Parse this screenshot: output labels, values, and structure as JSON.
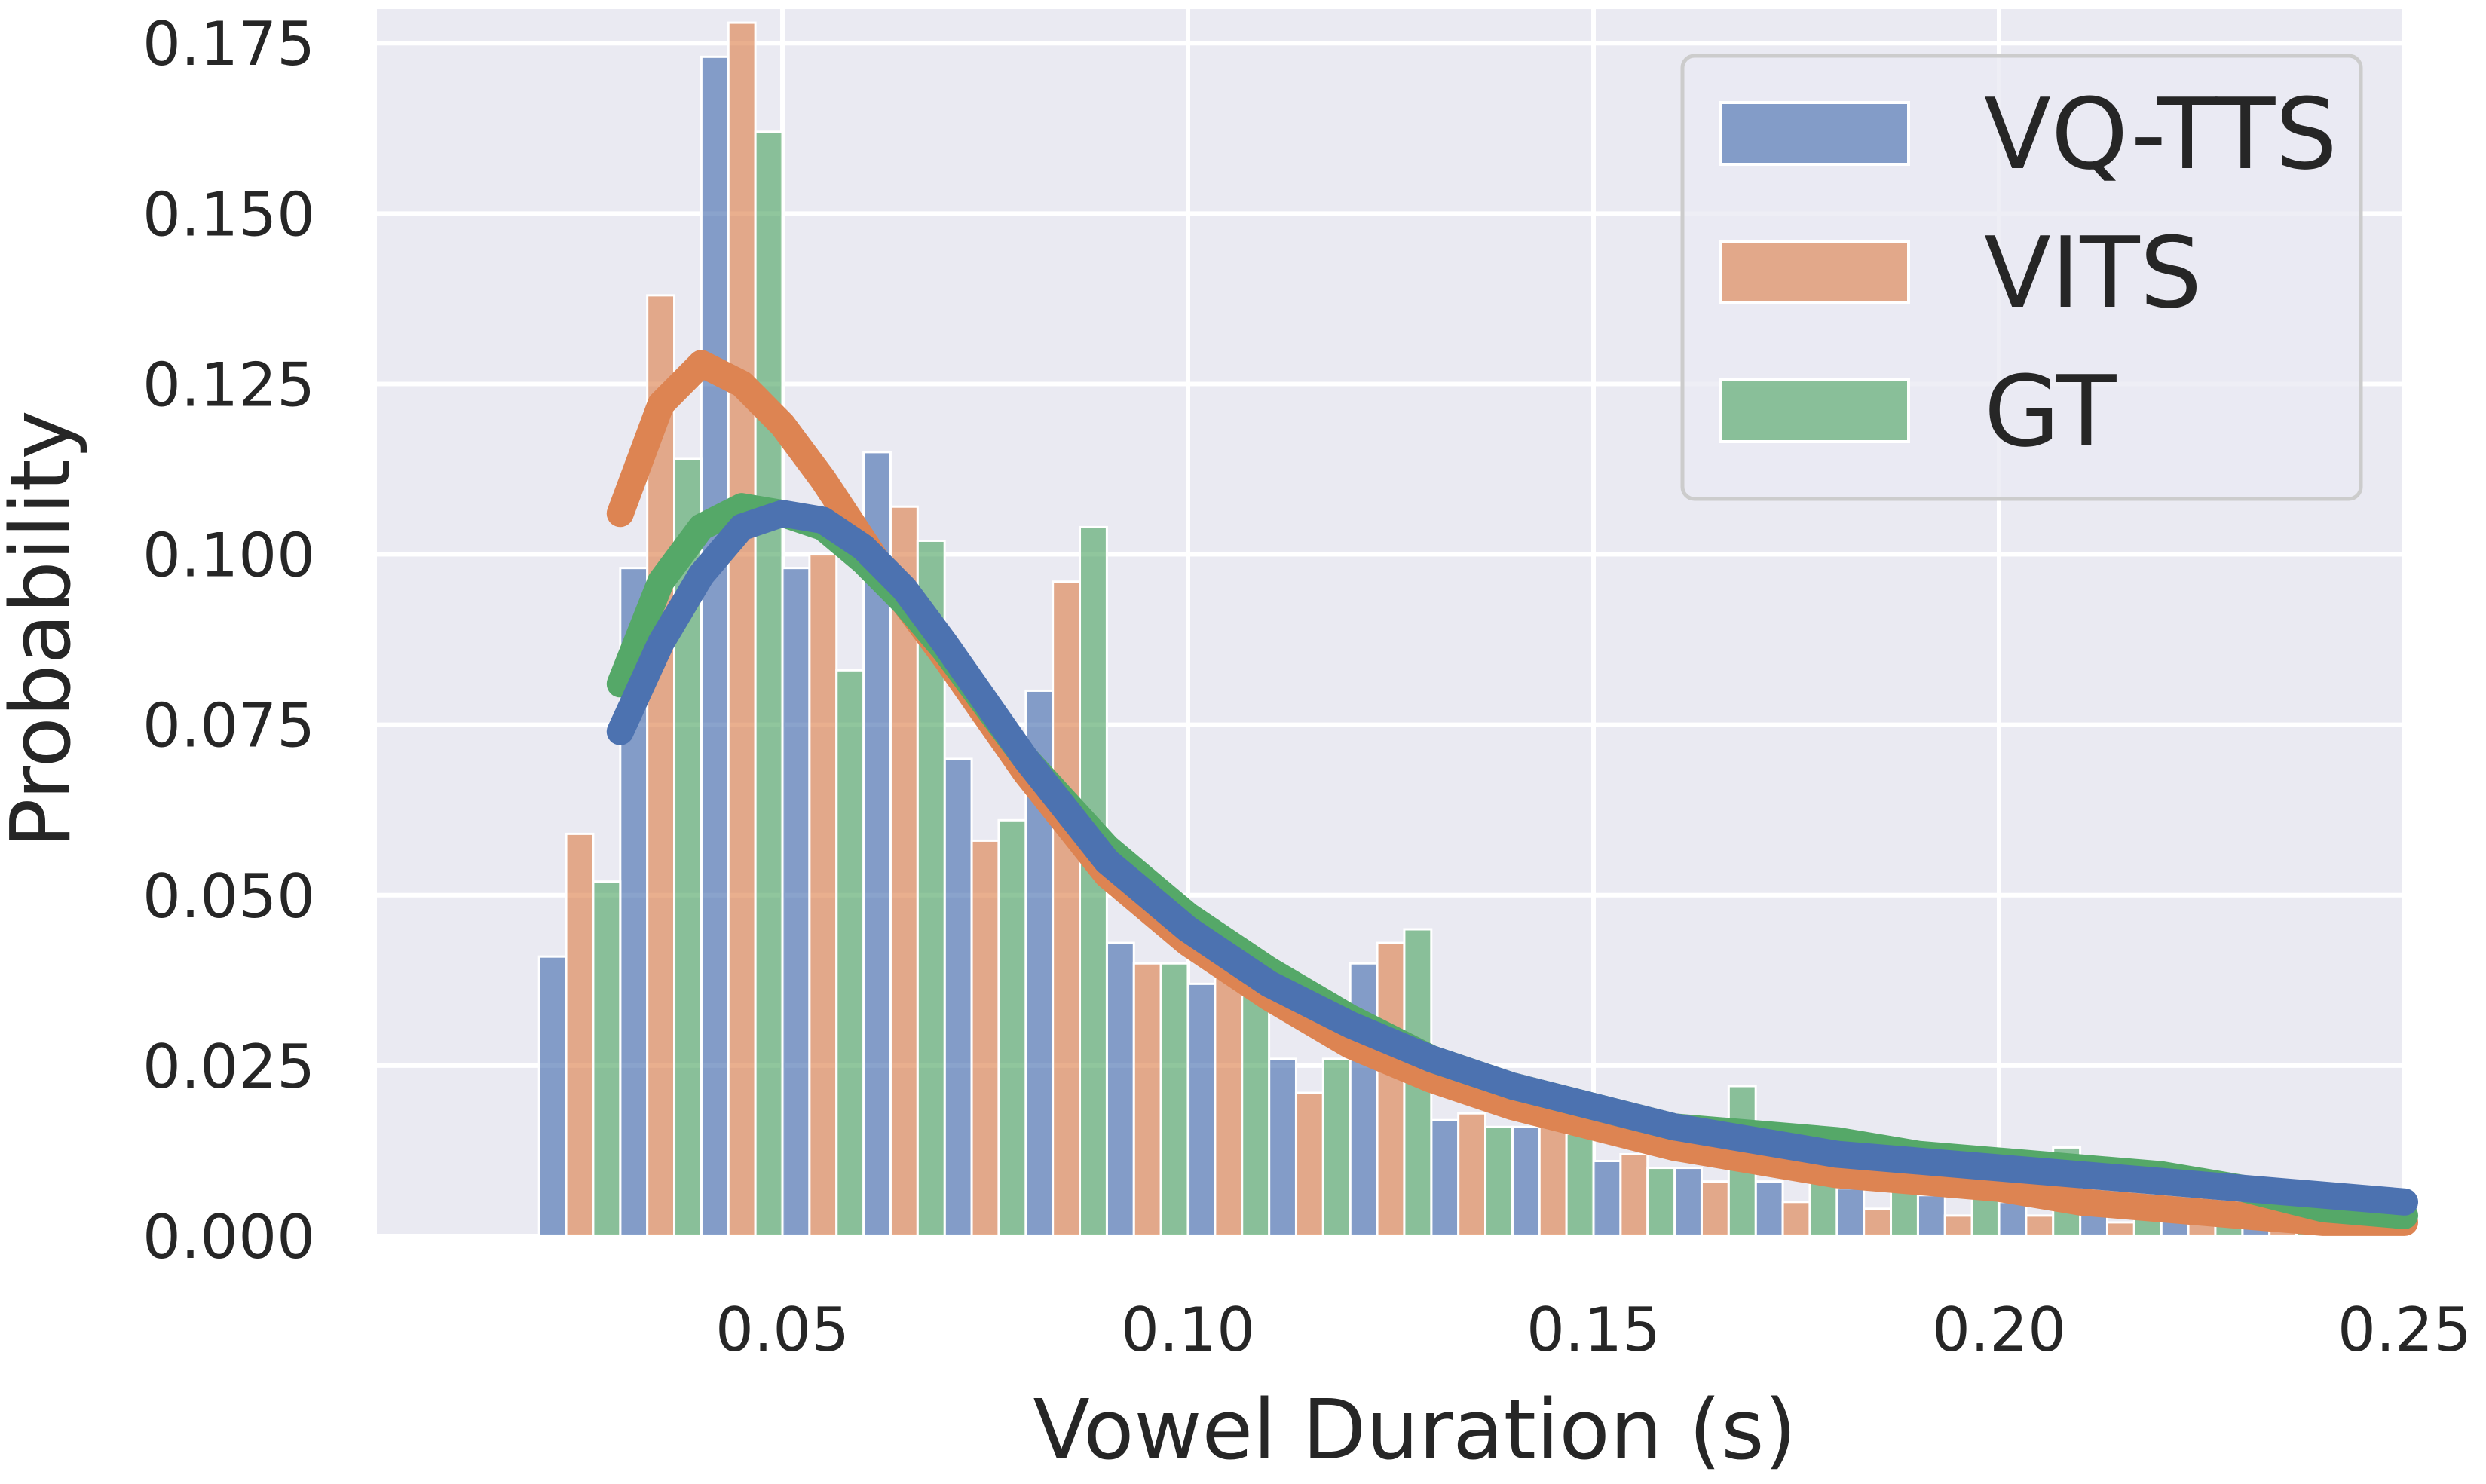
{
  "chart_data": {
    "type": "bar",
    "xlabel": "Vowel Duration (s)",
    "ylabel": "Probability",
    "xlim": [
      0.0,
      0.25
    ],
    "ylim": [
      0.0,
      0.18
    ],
    "xticks": [
      0.05,
      0.1,
      0.15,
      0.2,
      0.25
    ],
    "xtick_labels": [
      "0.05",
      "0.10",
      "0.15",
      "0.20",
      "0.25"
    ],
    "yticks": [
      0.0,
      0.025,
      0.05,
      0.075,
      0.1,
      0.125,
      0.15,
      0.175
    ],
    "ytick_labels": [
      "0.000",
      "0.025",
      "0.050",
      "0.075",
      "0.100",
      "0.125",
      "0.150",
      "0.175"
    ],
    "grid": true,
    "legend_position": "top-right",
    "bin_width": 0.01,
    "bin_centers": [
      0.025,
      0.035,
      0.045,
      0.055,
      0.065,
      0.075,
      0.085,
      0.095,
      0.105,
      0.115,
      0.125,
      0.135,
      0.145,
      0.155,
      0.165,
      0.175,
      0.185,
      0.195,
      0.205,
      0.215,
      0.225,
      0.235
    ],
    "series": [
      {
        "name": "VQ-TTS",
        "color": "#4c72b0",
        "values": [
          0.041,
          0.098,
          0.173,
          0.098,
          0.115,
          0.07,
          0.08,
          0.043,
          0.037,
          0.026,
          0.04,
          0.017,
          0.016,
          0.011,
          0.01,
          0.008,
          0.007,
          0.006,
          0.005,
          0.004,
          0.003,
          0.002
        ],
        "kde_x": [
          0.03,
          0.035,
          0.04,
          0.045,
          0.05,
          0.055,
          0.06,
          0.065,
          0.07,
          0.08,
          0.09,
          0.1,
          0.11,
          0.12,
          0.13,
          0.14,
          0.15,
          0.16,
          0.17,
          0.18,
          0.19,
          0.2,
          0.21,
          0.22,
          0.23,
          0.24,
          0.25
        ],
        "kde_y": [
          0.074,
          0.087,
          0.097,
          0.104,
          0.106,
          0.105,
          0.101,
          0.095,
          0.087,
          0.07,
          0.055,
          0.045,
          0.037,
          0.031,
          0.026,
          0.022,
          0.019,
          0.016,
          0.014,
          0.012,
          0.011,
          0.01,
          0.009,
          0.008,
          0.007,
          0.006,
          0.005
        ]
      },
      {
        "name": "VITS",
        "color": "#dd8452",
        "values": [
          0.059,
          0.138,
          0.178,
          0.1,
          0.107,
          0.058,
          0.096,
          0.04,
          0.038,
          0.021,
          0.043,
          0.018,
          0.016,
          0.012,
          0.008,
          0.005,
          0.004,
          0.003,
          0.003,
          0.002,
          0.002,
          0.001
        ],
        "kde_x": [
          0.03,
          0.035,
          0.04,
          0.045,
          0.05,
          0.055,
          0.06,
          0.065,
          0.07,
          0.08,
          0.09,
          0.1,
          0.11,
          0.12,
          0.13,
          0.14,
          0.15,
          0.16,
          0.17,
          0.18,
          0.19,
          0.2,
          0.21,
          0.22,
          0.23,
          0.24,
          0.25
        ],
        "kde_y": [
          0.106,
          0.122,
          0.128,
          0.125,
          0.119,
          0.111,
          0.102,
          0.093,
          0.085,
          0.068,
          0.053,
          0.043,
          0.035,
          0.028,
          0.023,
          0.019,
          0.016,
          0.013,
          0.011,
          0.009,
          0.008,
          0.007,
          0.005,
          0.004,
          0.003,
          0.002,
          0.002
        ]
      },
      {
        "name": "GT",
        "color": "#55a868",
        "values": [
          0.052,
          0.114,
          0.162,
          0.083,
          0.102,
          0.061,
          0.104,
          0.04,
          0.038,
          0.026,
          0.045,
          0.016,
          0.015,
          0.01,
          0.022,
          0.011,
          0.009,
          0.008,
          0.013,
          0.006,
          0.005,
          0.004
        ],
        "kde_x": [
          0.03,
          0.035,
          0.04,
          0.045,
          0.05,
          0.055,
          0.06,
          0.065,
          0.07,
          0.08,
          0.09,
          0.1,
          0.11,
          0.12,
          0.13,
          0.14,
          0.15,
          0.16,
          0.17,
          0.18,
          0.19,
          0.2,
          0.21,
          0.22,
          0.23,
          0.24,
          0.25
        ],
        "kde_y": [
          0.081,
          0.096,
          0.104,
          0.107,
          0.106,
          0.104,
          0.099,
          0.093,
          0.086,
          0.07,
          0.057,
          0.047,
          0.039,
          0.032,
          0.026,
          0.022,
          0.019,
          0.016,
          0.015,
          0.014,
          0.012,
          0.011,
          0.01,
          0.009,
          0.007,
          0.004,
          0.003
        ]
      }
    ]
  }
}
